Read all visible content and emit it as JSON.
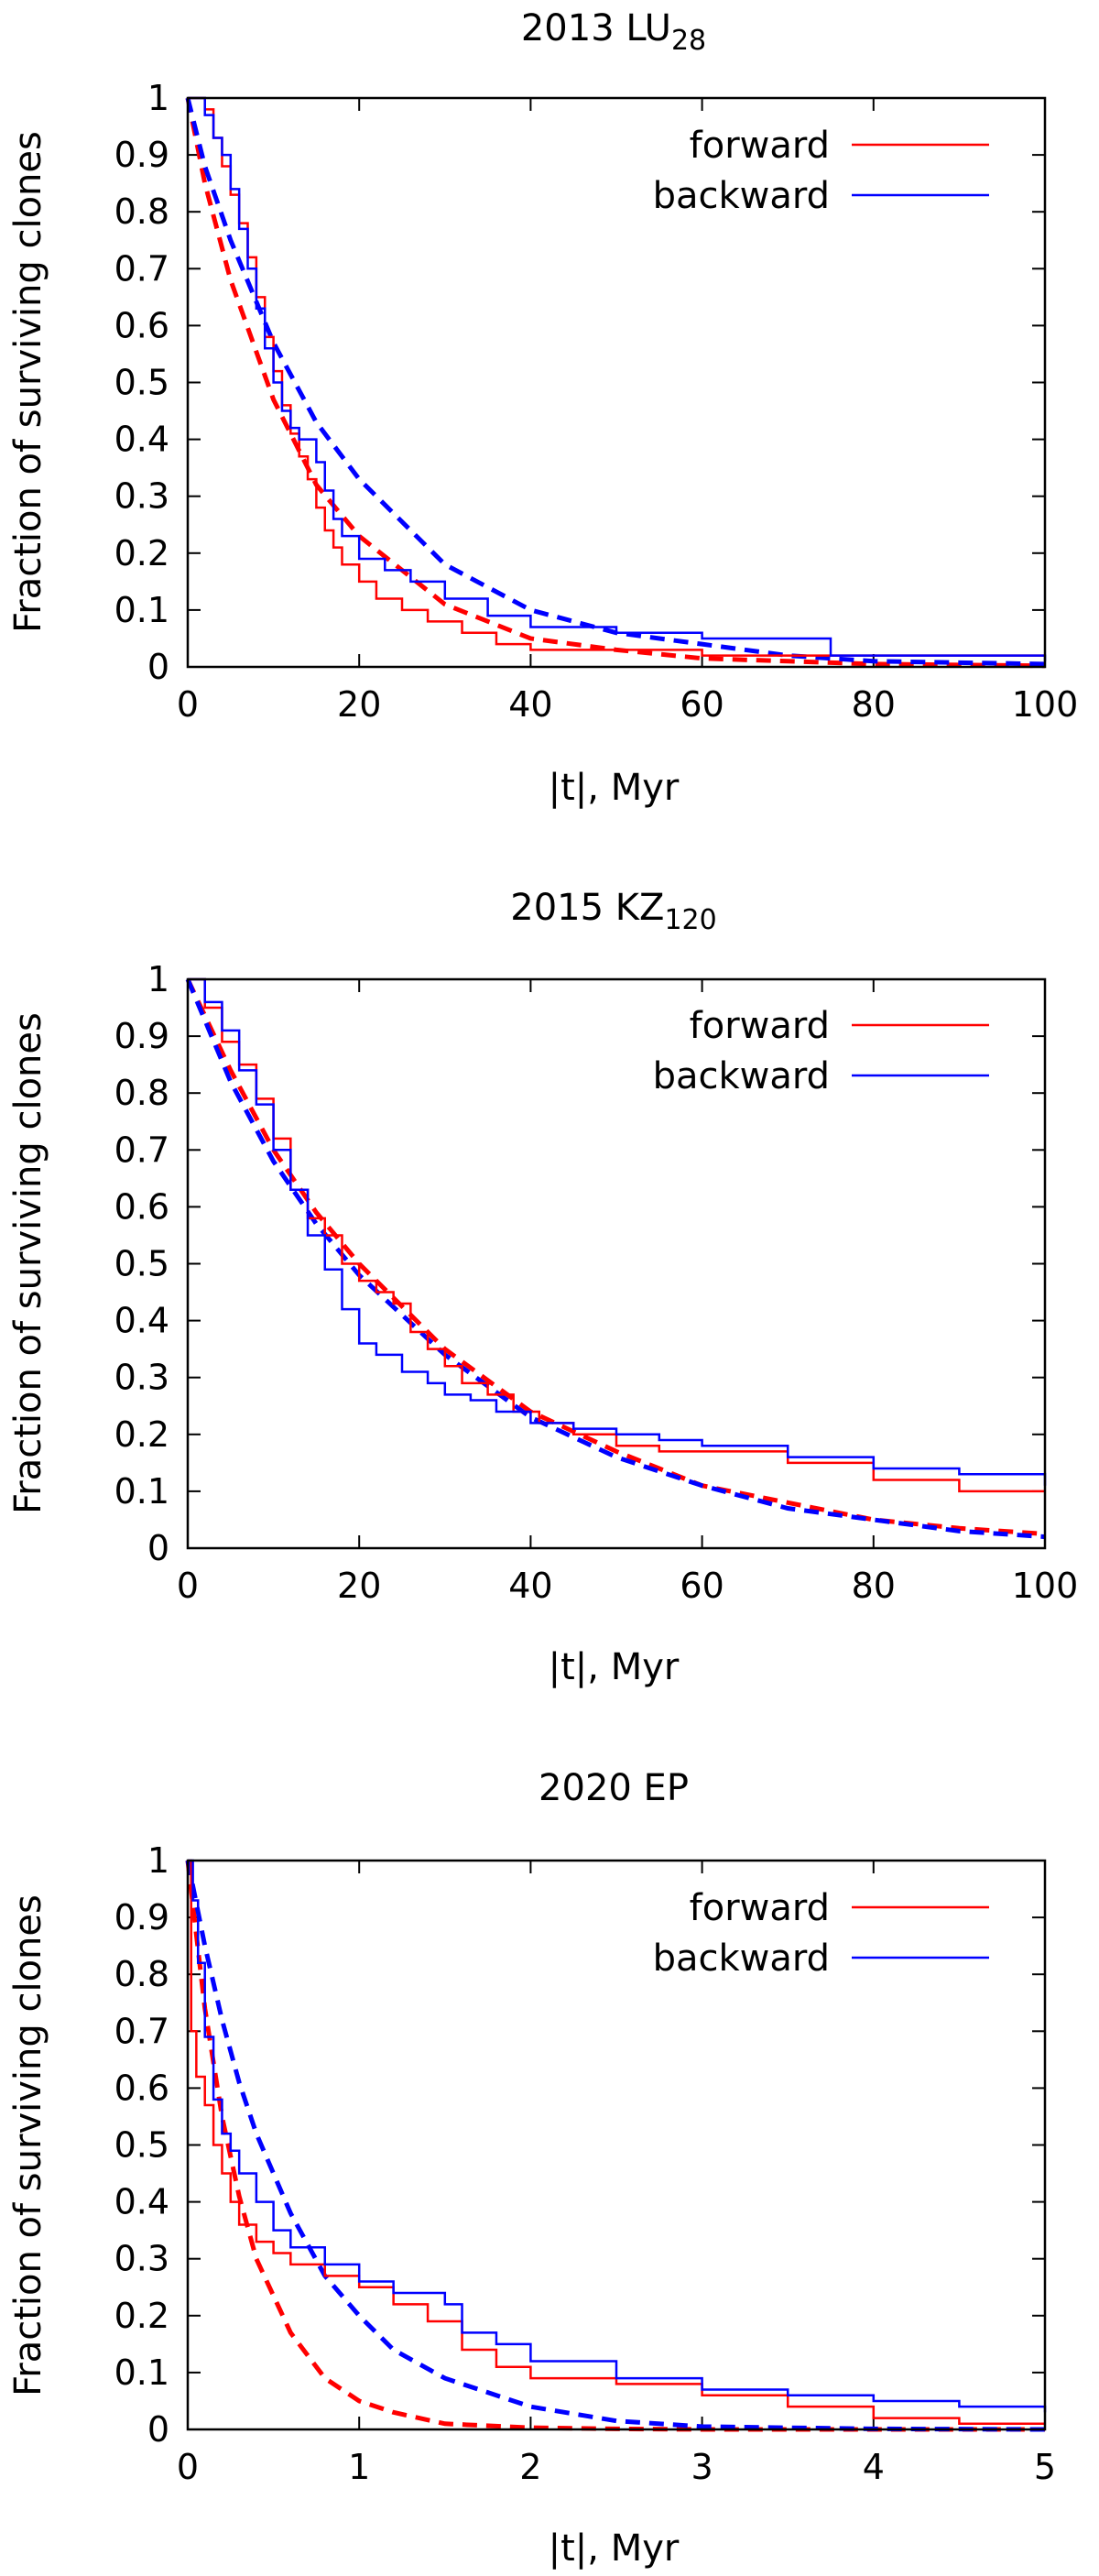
{
  "chart_data": [
    {
      "type": "line",
      "title": {
        "main": "2013 LU",
        "sub": "28"
      },
      "xlabel": "|t|, Myr",
      "ylabel": "Fraction of surviving clones",
      "xlim": [
        0,
        100
      ],
      "ylim": [
        0,
        1
      ],
      "xticks": [
        "0",
        "20",
        "40",
        "60",
        "80",
        "100"
      ],
      "yticks": [
        "0",
        "0.1",
        "0.2",
        "0.3",
        "0.4",
        "0.5",
        "0.6",
        "0.7",
        "0.8",
        "0.9",
        "1"
      ],
      "legend_position": "top-right",
      "series": [
        {
          "name": "forward",
          "color": "#ff0000",
          "style": "step",
          "x": [
            0,
            2,
            3,
            4,
            5,
            6,
            7,
            8,
            9,
            10,
            11,
            12,
            13,
            14,
            15,
            16,
            17,
            18,
            20,
            22,
            25,
            28,
            32,
            36,
            40,
            50,
            60,
            100
          ],
          "y": [
            1.0,
            0.98,
            0.93,
            0.88,
            0.83,
            0.78,
            0.72,
            0.65,
            0.58,
            0.52,
            0.46,
            0.41,
            0.37,
            0.33,
            0.28,
            0.24,
            0.21,
            0.18,
            0.15,
            0.12,
            0.1,
            0.08,
            0.06,
            0.04,
            0.03,
            0.03,
            0.02,
            0.02
          ]
        },
        {
          "name": "backward",
          "color": "#0000ff",
          "style": "step",
          "x": [
            0,
            2,
            3,
            4,
            5,
            6,
            7,
            8,
            9,
            10,
            11,
            12,
            13,
            15,
            16,
            17,
            18,
            20,
            23,
            26,
            30,
            35,
            40,
            50,
            60,
            67,
            75,
            100
          ],
          "y": [
            1.0,
            0.97,
            0.93,
            0.9,
            0.84,
            0.77,
            0.7,
            0.63,
            0.56,
            0.5,
            0.45,
            0.42,
            0.4,
            0.36,
            0.31,
            0.26,
            0.23,
            0.19,
            0.17,
            0.15,
            0.12,
            0.09,
            0.07,
            0.06,
            0.05,
            0.05,
            0.02,
            0.01
          ]
        },
        {
          "name": "",
          "color": "#ff0000",
          "style": "dashed",
          "x": [
            0,
            2,
            5,
            10,
            15,
            20,
            30,
            40,
            50,
            60,
            70,
            80,
            100
          ],
          "y": [
            1.0,
            0.85,
            0.68,
            0.47,
            0.32,
            0.23,
            0.11,
            0.05,
            0.03,
            0.015,
            0.01,
            0.005,
            0.002
          ]
        },
        {
          "name": "",
          "color": "#0000ff",
          "style": "dashed",
          "x": [
            0,
            2,
            5,
            10,
            15,
            20,
            30,
            40,
            50,
            60,
            70,
            80,
            100
          ],
          "y": [
            1.0,
            0.88,
            0.75,
            0.57,
            0.43,
            0.33,
            0.18,
            0.1,
            0.06,
            0.04,
            0.02,
            0.01,
            0.005
          ]
        }
      ]
    },
    {
      "type": "line",
      "title": {
        "main": "2015 KZ",
        "sub": "120"
      },
      "xlabel": "|t|, Myr",
      "ylabel": "Fraction of surviving clones",
      "xlim": [
        0,
        100
      ],
      "ylim": [
        0,
        1
      ],
      "xticks": [
        "0",
        "20",
        "40",
        "60",
        "80",
        "100"
      ],
      "yticks": [
        "0",
        "0.1",
        "0.2",
        "0.3",
        "0.4",
        "0.5",
        "0.6",
        "0.7",
        "0.8",
        "0.9",
        "1"
      ],
      "legend_position": "top-right",
      "series": [
        {
          "name": "forward",
          "color": "#ff0000",
          "style": "step",
          "x": [
            0,
            2,
            4,
            6,
            8,
            10,
            12,
            14,
            16,
            18,
            20,
            22,
            24,
            26,
            28,
            30,
            32,
            35,
            38,
            41,
            45,
            50,
            55,
            60,
            70,
            80,
            90,
            100
          ],
          "y": [
            1.0,
            0.95,
            0.89,
            0.85,
            0.79,
            0.72,
            0.63,
            0.58,
            0.55,
            0.5,
            0.47,
            0.45,
            0.43,
            0.38,
            0.35,
            0.32,
            0.29,
            0.27,
            0.24,
            0.22,
            0.2,
            0.18,
            0.17,
            0.17,
            0.15,
            0.12,
            0.1,
            0.1
          ]
        },
        {
          "name": "backward",
          "color": "#0000ff",
          "style": "step",
          "x": [
            0,
            2,
            4,
            6,
            8,
            10,
            12,
            14,
            16,
            18,
            20,
            22,
            25,
            28,
            30,
            33,
            36,
            40,
            45,
            50,
            55,
            60,
            70,
            80,
            90,
            100
          ],
          "y": [
            1.0,
            0.96,
            0.91,
            0.84,
            0.78,
            0.7,
            0.63,
            0.55,
            0.49,
            0.42,
            0.36,
            0.34,
            0.31,
            0.29,
            0.27,
            0.26,
            0.24,
            0.22,
            0.21,
            0.2,
            0.19,
            0.18,
            0.16,
            0.14,
            0.13,
            0.11
          ]
        },
        {
          "name": "",
          "color": "#ff0000",
          "style": "dashed",
          "x": [
            0,
            5,
            10,
            15,
            20,
            30,
            40,
            50,
            60,
            70,
            80,
            90,
            100
          ],
          "y": [
            1.0,
            0.84,
            0.7,
            0.59,
            0.5,
            0.35,
            0.24,
            0.17,
            0.11,
            0.08,
            0.05,
            0.035,
            0.025
          ]
        },
        {
          "name": "",
          "color": "#0000ff",
          "style": "dashed",
          "x": [
            0,
            5,
            10,
            15,
            20,
            30,
            40,
            50,
            60,
            70,
            80,
            90,
            100
          ],
          "y": [
            1.0,
            0.82,
            0.68,
            0.57,
            0.48,
            0.34,
            0.23,
            0.16,
            0.11,
            0.07,
            0.05,
            0.03,
            0.02
          ]
        }
      ]
    },
    {
      "type": "line",
      "title": {
        "main": "2020 EP",
        "sub": ""
      },
      "xlabel": "|t|, Myr",
      "ylabel": "Fraction of surviving clones",
      "xlim": [
        0,
        5
      ],
      "ylim": [
        0,
        1
      ],
      "xticks": [
        "0",
        "1",
        "2",
        "3",
        "4",
        "5"
      ],
      "yticks": [
        "0",
        "0.1",
        "0.2",
        "0.3",
        "0.4",
        "0.5",
        "0.6",
        "0.7",
        "0.8",
        "0.9",
        "1"
      ],
      "legend_position": "top-right",
      "series": [
        {
          "name": "forward",
          "color": "#ff0000",
          "style": "step",
          "x": [
            0,
            0.02,
            0.05,
            0.1,
            0.15,
            0.2,
            0.25,
            0.3,
            0.4,
            0.5,
            0.6,
            0.8,
            1.0,
            1.2,
            1.4,
            1.6,
            1.8,
            2.0,
            2.5,
            3.0,
            3.5,
            4.0,
            4.5,
            5.0
          ],
          "y": [
            1.0,
            0.7,
            0.62,
            0.57,
            0.5,
            0.45,
            0.4,
            0.36,
            0.33,
            0.31,
            0.29,
            0.27,
            0.25,
            0.22,
            0.19,
            0.14,
            0.11,
            0.09,
            0.08,
            0.06,
            0.04,
            0.02,
            0.01,
            0.01
          ]
        },
        {
          "name": "backward",
          "color": "#0000ff",
          "style": "step",
          "x": [
            0,
            0.03,
            0.06,
            0.1,
            0.15,
            0.2,
            0.25,
            0.3,
            0.4,
            0.5,
            0.6,
            0.8,
            1.0,
            1.2,
            1.5,
            1.6,
            1.8,
            2.0,
            2.5,
            3.0,
            3.5,
            4.0,
            4.5,
            5.0
          ],
          "y": [
            1.0,
            0.93,
            0.82,
            0.69,
            0.58,
            0.52,
            0.49,
            0.45,
            0.4,
            0.35,
            0.32,
            0.29,
            0.26,
            0.24,
            0.22,
            0.17,
            0.15,
            0.12,
            0.09,
            0.07,
            0.06,
            0.05,
            0.04,
            0.03
          ]
        },
        {
          "name": "",
          "color": "#ff0000",
          "style": "dashed",
          "x": [
            0,
            0.1,
            0.2,
            0.3,
            0.4,
            0.6,
            0.8,
            1.0,
            1.2,
            1.5,
            2.0,
            2.5,
            3.0,
            4.0,
            5.0
          ],
          "y": [
            1.0,
            0.74,
            0.55,
            0.41,
            0.3,
            0.17,
            0.09,
            0.05,
            0.03,
            0.01,
            0.003,
            0.001,
            0.0,
            0.0,
            0.0
          ]
        },
        {
          "name": "",
          "color": "#0000ff",
          "style": "dashed",
          "x": [
            0,
            0.1,
            0.2,
            0.3,
            0.4,
            0.6,
            0.8,
            1.0,
            1.2,
            1.5,
            2.0,
            2.5,
            3.0,
            4.0,
            5.0
          ],
          "y": [
            1.0,
            0.85,
            0.72,
            0.61,
            0.52,
            0.38,
            0.27,
            0.2,
            0.14,
            0.09,
            0.04,
            0.015,
            0.005,
            0.001,
            0.0
          ]
        }
      ]
    }
  ]
}
